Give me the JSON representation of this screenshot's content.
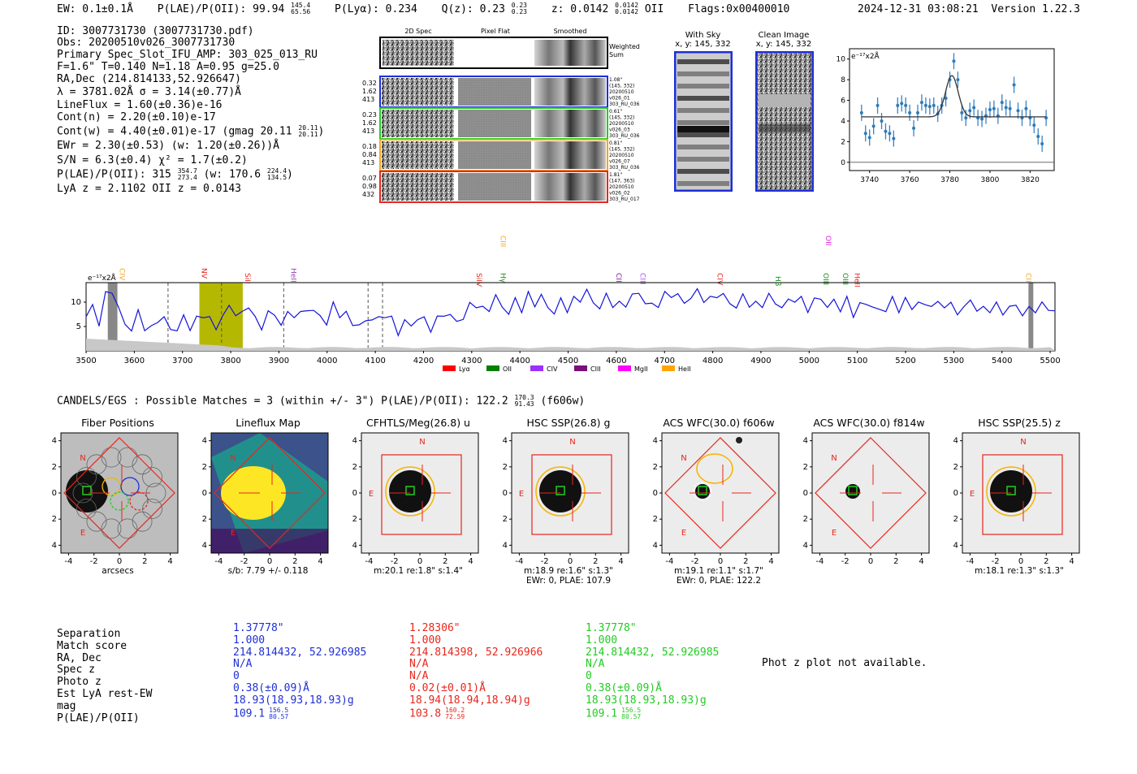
{
  "header": {
    "ew": "EW: 0.1±0.1Å",
    "plae_label": "P(LAE)/P(OII): 99.94",
    "plae_sup": "145.4",
    "plae_sub": "65.56",
    "plya": "P(Lyα): 0.234",
    "qz_label": "Q(z): 0.23",
    "qz_sup": "0.23",
    "qz_sub": "0.23",
    "z_label": "z: 0.0142",
    "z_sup": "0.0142",
    "z_sub": "0.0142",
    "z_line": "OII",
    "flags": "Flags:0x00400010",
    "timestamp": "2024-12-31 03:08:21",
    "version": "Version 1.22.3"
  },
  "info": {
    "id": "ID: 3007731730 (3007731730.pdf)",
    "obs": "Obs: 20200510v026_3007731730",
    "primary": "Primary Spec_Slot_IFU_AMP: 303_025_013_RU",
    "f_line": "F=1.6\"  T=0.140  N=1.18  A=0.95  g=25.0",
    "radec": "RA,Dec (214.814133,52.926647)",
    "lambda": "λ = 3781.02Å  σ = 3.14(±0.77)Å",
    "lineflux": "LineFlux = 1.60(±0.36)e-16",
    "contn": "Cont(n) = 2.20(±0.10)e-17",
    "contw_label": "Cont(w) = 4.40(±0.01)e-17 (gmag 20.11",
    "contw_sup": "20.11",
    "contw_sub": "20.11",
    "ewr": "EWr = 2.30(±0.53) (w: 1.20(±0.26))Å",
    "sn": "S/N = 6.3(±0.4)  χ² = 1.7(±0.2)",
    "plae_label": "P(LAE)/P(OII): 315",
    "plae_sup": "354.7",
    "plae_sub": "273.4",
    "plae_w": "(w: 170.6",
    "plae_w_sup": "224.4",
    "plae_w_sub": "134.5",
    "lya": "LyA z = 2.1102  OII z = 0.0143"
  },
  "cutouts": {
    "col_headers": [
      "2D Spec",
      "Pixel Flat",
      "Smoothed"
    ],
    "weighted_label": "Weighted Sum",
    "rows": [
      {
        "left": [
          "0.32",
          "1.62",
          "413"
        ],
        "right": [
          "1.08\"",
          "(145, 332)",
          "20200510",
          "v026_01",
          "303_RU_036"
        ],
        "color": "#1f2fd6"
      },
      {
        "left": [
          "0.23",
          "1.62",
          "413"
        ],
        "right": [
          "0.61\"",
          "(145, 332)",
          "20200510",
          "v026_03",
          "303_RU_036"
        ],
        "color": "#22cc22"
      },
      {
        "left": [
          "0.18",
          "0.84",
          "413"
        ],
        "right": [
          "0.81\"",
          "(145, 332)",
          "20200510",
          "v026_07",
          "303_RU_036"
        ],
        "color": "#f5a623"
      },
      {
        "left": [
          "0.07",
          "0.98",
          "432"
        ],
        "right": [
          "1.81\"",
          "(147, 363)",
          "20200510",
          "v026_02",
          "303_RU_017"
        ],
        "color": "#e8261c"
      }
    ],
    "with_sky": "With Sky",
    "with_sky_xy": "x, y: 145, 332",
    "clean": "Clean Image",
    "clean_xy": "x, y: 145, 332"
  },
  "zoom_plot": {
    "ylabel": "e⁻¹⁷x2Å",
    "yticks": [
      "0",
      "2",
      "4",
      "6",
      "8",
      "10"
    ],
    "xticks": [
      "3740",
      "3760",
      "3780",
      "3800",
      "3820"
    ]
  },
  "spectrum": {
    "ylabel": "e⁻¹⁷x2Å",
    "yticks": [
      "5",
      "10"
    ],
    "xticks": [
      "3500",
      "3600",
      "3700",
      "3800",
      "3900",
      "4000",
      "4100",
      "4200",
      "4300",
      "4400",
      "4500",
      "4600",
      "4700",
      "4800",
      "4900",
      "5000",
      "5100",
      "5200",
      "5300",
      "5400",
      "5500"
    ],
    "line_labels": [
      {
        "name": "CIV",
        "color": "#f5a623"
      },
      {
        "name": "NV",
        "color": "#e8261c"
      },
      {
        "name": "SiII",
        "color": "#e8261c"
      },
      {
        "name": "HeII",
        "color": "#8e44ad"
      },
      {
        "name": "SiIV",
        "color": "#e8261c"
      },
      {
        "name": "Hγ",
        "color": "#1a8c1a"
      },
      {
        "name": "CIII",
        "color": "#f5a623"
      },
      {
        "name": "CII",
        "color": "#7b1fa2"
      },
      {
        "name": "CIII",
        "color": "#a855f7"
      },
      {
        "name": "CIV",
        "color": "#e8261c"
      },
      {
        "name": "Hβ",
        "color": "#1a8c1a"
      },
      {
        "name": "OIII",
        "color": "#1a8c1a"
      },
      {
        "name": "OII",
        "color": "#e21ee2"
      },
      {
        "name": "OIII",
        "color": "#1a8c1a"
      },
      {
        "name": "HeII",
        "color": "#e8261c"
      },
      {
        "name": "CII",
        "color": "#f5a623"
      }
    ],
    "legend": [
      {
        "name": "Lyα",
        "color": "#ff0000"
      },
      {
        "name": "OII",
        "color": "#008000"
      },
      {
        "name": "CIV",
        "color": "#9b30ff"
      },
      {
        "name": "CIII",
        "color": "#7a0f7a"
      },
      {
        "name": "MgII",
        "color": "#ff00ff"
      },
      {
        "name": "HeII",
        "color": "#ffa500"
      }
    ]
  },
  "catalog": {
    "heading_label": "CANDELS/EGS : Possible Matches = 3 (within +/- 3\")  P(LAE)/P(OII): 122.2",
    "heading_sup": "170.3",
    "heading_sub": "91.43",
    "heading_tail": "(f606w)"
  },
  "panels": [
    {
      "title": "Fiber Positions",
      "caption": [
        "arcsecs"
      ]
    },
    {
      "title": "Lineflux Map",
      "caption": [
        "s/b: 7.79 +/- 0.118"
      ]
    },
    {
      "title": "CFHTLS/Meg(26.8) u",
      "caption": [
        "m:20.1  re:1.8\"  s:1.4\""
      ]
    },
    {
      "title": "HSC SSP(26.8) g",
      "caption": [
        "m:18.9  re:1.6\"  s:1.3\"",
        "EWr: 0, PLAE: 107.9"
      ]
    },
    {
      "title": "ACS WFC(30.0) f606w",
      "caption": [
        "m:19.1  re:1.1\"  s:1.7\"",
        "EWr: 0, PLAE: 122.2"
      ]
    },
    {
      "title": "ACS WFC(30.0) f814w",
      "caption": []
    },
    {
      "title": "HSC SSP(25.5) z",
      "caption": [
        "m:18.1  re:1.3\"  s:1.3\""
      ]
    }
  ],
  "panel_axis_ticks": [
    "-4",
    "-2",
    "0",
    "2",
    "4"
  ],
  "compass": {
    "n": "N",
    "e": "E"
  },
  "table": {
    "labels": [
      "Separation",
      "Match score",
      "RA, Dec",
      "Spec z",
      "Photo z",
      "Est LyA rest-EW",
      "mag",
      "P(LAE)/P(OII)"
    ],
    "columns": [
      {
        "color": "#1f2fd6",
        "values": [
          "1.37778\"",
          "1.000",
          "214.814432, 52.926985",
          "N/A",
          "0",
          "0.38(±0.09)Å",
          "18.93(18.93,18.93)g",
          "109.1"
        ],
        "plae_sup": "156.5",
        "plae_sub": "80.57"
      },
      {
        "color": "#e8261c",
        "values": [
          "1.28306\"",
          "1.000",
          "214.814398, 52.926966",
          "N/A",
          "N/A",
          "0.02(±0.01)Å",
          "18.94(18.94,18.94)g",
          "103.8"
        ],
        "plae_sup": "160.2",
        "plae_sub": "72.59"
      },
      {
        "color": "#22cc22",
        "values": [
          "1.37778\"",
          "1.000",
          "214.814432, 52.926985",
          "N/A",
          "0",
          "0.38(±0.09)Å",
          "18.93(18.93,18.93)g",
          "109.1"
        ],
        "plae_sup": "156.5",
        "plae_sub": "80.57"
      }
    ],
    "photz_note": "Phot z plot not available."
  },
  "chart_data": [
    {
      "type": "scatter",
      "title": "",
      "xlabel": "",
      "ylabel": "e⁻¹⁷x2Å",
      "xlim": [
        3730,
        3832
      ],
      "ylim": [
        -0.8,
        11
      ],
      "x": [
        3736,
        3738,
        3740,
        3742,
        3744,
        3746,
        3748,
        3750,
        3752,
        3754,
        3756,
        3758,
        3760,
        3762,
        3764,
        3766,
        3768,
        3770,
        3772,
        3774,
        3776,
        3778,
        3780,
        3782,
        3784,
        3786,
        3788,
        3790,
        3792,
        3794,
        3796,
        3798,
        3800,
        3802,
        3804,
        3806,
        3808,
        3810,
        3812,
        3814,
        3816,
        3818,
        3820,
        3822,
        3824,
        3826,
        3828
      ],
      "values": [
        4.8,
        2.8,
        2.4,
        3.5,
        5.5,
        4.0,
        3.0,
        2.8,
        2.3,
        5.5,
        5.7,
        5.5,
        4.8,
        3.3,
        4.8,
        5.8,
        5.5,
        5.4,
        5.5,
        4.7,
        5.5,
        6.2,
        8.0,
        9.8,
        8.0,
        4.8,
        4.3,
        5.0,
        5.3,
        4.3,
        4.2,
        4.5,
        5.1,
        5.2,
        4.5,
        5.8,
        5.3,
        5.2,
        7.5,
        5.0,
        4.3,
        5.2,
        4.3,
        3.6,
        2.5,
        1.8,
        4.3
      ],
      "fit": {
        "continuum": 4.4,
        "peak": 8.4,
        "center": 3781.02,
        "sigma": 3.14
      }
    },
    {
      "type": "line",
      "title": "",
      "xlabel": "",
      "ylabel": "e⁻¹⁷x2Å",
      "xlim": [
        3500,
        5510
      ],
      "ylim": [
        0,
        14
      ],
      "series": [
        {
          "name": "spectrum",
          "values": [
            7,
            9,
            6,
            11,
            13,
            8,
            6,
            4,
            8,
            5,
            4,
            7,
            6,
            5,
            4,
            7,
            5,
            6,
            8,
            6,
            5,
            7,
            9,
            8,
            7,
            10,
            6,
            5,
            8,
            7,
            6,
            7,
            8,
            7,
            9,
            8,
            7,
            6,
            9,
            8,
            7,
            6,
            5,
            6,
            7,
            6,
            8,
            6,
            4,
            6,
            5,
            7,
            6,
            5,
            6,
            8,
            7,
            6,
            7,
            9,
            10,
            8,
            9,
            11,
            9,
            8,
            10,
            9,
            11,
            10,
            11,
            9,
            8,
            10,
            9,
            10,
            11,
            12,
            10,
            9,
            11,
            10,
            9,
            10,
            11,
            12,
            10,
            9,
            10,
            11,
            12,
            11,
            10,
            11,
            12,
            11,
            10,
            12,
            11,
            10,
            9,
            11,
            10,
            9,
            10,
            11,
            10,
            9,
            10,
            11,
            10,
            9,
            10,
            11,
            9,
            10,
            9,
            10,
            8,
            9,
            10,
            9,
            8,
            9,
            10,
            9,
            10,
            9,
            10,
            9,
            10,
            9,
            10,
            9,
            8,
            9,
            10,
            9,
            8,
            9,
            9,
            8,
            9,
            9,
            8,
            8,
            9,
            9,
            9,
            8
          ]
        }
      ],
      "emission_line": 3781,
      "highlight_range": [
        3735,
        3825
      ]
    }
  ]
}
